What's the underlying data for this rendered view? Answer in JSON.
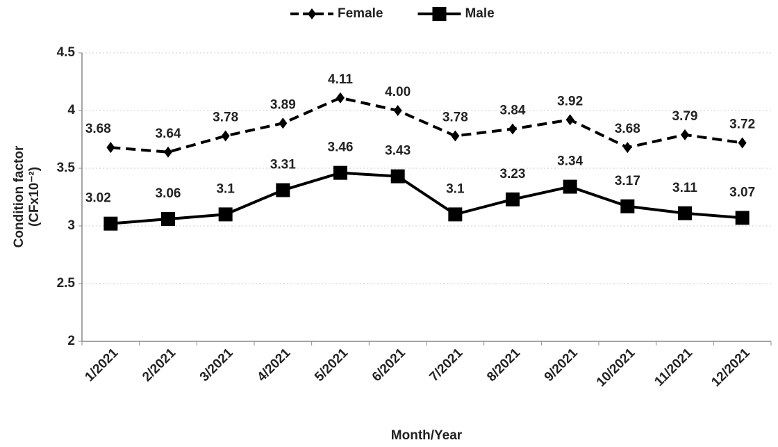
{
  "chart_data": {
    "type": "line",
    "ylabel": [
      "Condition factor",
      "(CFx10⁻²)"
    ],
    "xlabel": "Month/Year",
    "categories": [
      "1/2021",
      "2/2021",
      "3/2021",
      "4/2021",
      "5/2021",
      "6/2021",
      "7/2021",
      "8/2021",
      "9/2021",
      "10/2021",
      "11/2021",
      "12/2021"
    ],
    "series": [
      {
        "name": "Female",
        "color": "#000000",
        "dash": true,
        "marker": "diamond",
        "values": [
          3.68,
          3.64,
          3.78,
          3.89,
          4.11,
          4,
          3.78,
          3.84,
          3.92,
          3.68,
          3.79,
          3.72
        ],
        "value_labels": [
          "3.68",
          "3.64",
          "3.78",
          "3.89",
          "4.11",
          "4.00",
          "3.78",
          "3.84",
          "3.92",
          "3.68",
          "3.79",
          "3.72"
        ]
      },
      {
        "name": "Male",
        "color": "#000000",
        "dash": false,
        "marker": "square",
        "values": [
          3.02,
          3.06,
          3.1,
          3.31,
          3.46,
          3.43,
          3.1,
          3.23,
          3.34,
          3.17,
          3.11,
          3.07
        ],
        "value_labels": [
          "3.02",
          "3.06",
          "3.1",
          "3.31",
          "3.46",
          "3.43",
          "3.1",
          "3.23",
          "3.34",
          "3.17",
          "3.11",
          "3.07"
        ]
      }
    ],
    "ylim": [
      2,
      4.5
    ],
    "yticks": [
      2,
      2.5,
      3,
      3.5,
      4,
      4.5
    ],
    "grid": true,
    "legend": "top"
  }
}
